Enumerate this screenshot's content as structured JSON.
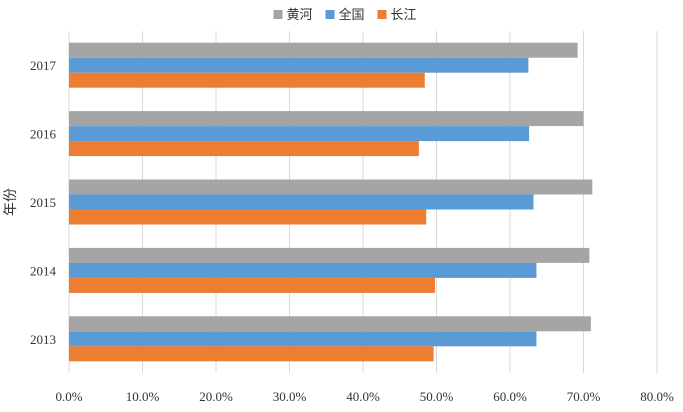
{
  "chart_data": {
    "type": "bar",
    "orientation": "horizontal",
    "categories": [
      "2013",
      "2014",
      "2015",
      "2016",
      "2017"
    ],
    "series": [
      {
        "name": "黄河",
        "color": "#a5a5a5",
        "values": [
          71.0,
          70.8,
          71.2,
          70.0,
          69.2
        ]
      },
      {
        "name": "全国",
        "color": "#5b9bd5",
        "values": [
          63.6,
          63.6,
          63.2,
          62.6,
          62.5
        ]
      },
      {
        "name": "长江",
        "color": "#ed7d31",
        "values": [
          49.6,
          49.8,
          48.6,
          47.6,
          48.4
        ]
      }
    ],
    "xlim": [
      0,
      80
    ],
    "x_ticks": [
      "0.0%",
      "10.0%",
      "20.0%",
      "30.0%",
      "40.0%",
      "50.0%",
      "60.0%",
      "70.0%",
      "80.0%"
    ],
    "ylabel": "年份",
    "legend_position": "top",
    "grid": true
  }
}
